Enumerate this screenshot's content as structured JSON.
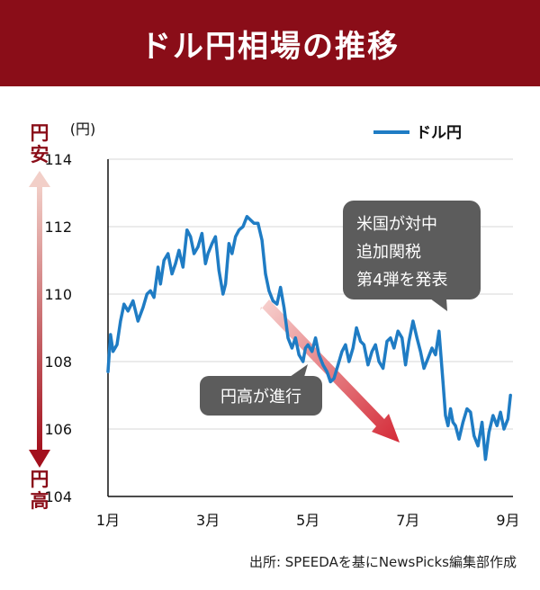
{
  "title": "ドル円相場の推移",
  "source": "出所: SPEEDAを基にNewsPicks編集部作成",
  "colors": {
    "header_bg": "#8a0d18",
    "line": "#1f7cc4",
    "callout_bg": "#5c5c5c",
    "arrow": "#d42a37",
    "axis": "#111111",
    "grid": "#d7d7d7"
  },
  "chart_data": {
    "type": "line",
    "unit_label": "(円)",
    "legend_label": "ドル円",
    "legend_position": "top-right",
    "grid": true,
    "ylim": [
      104,
      114
    ],
    "yticks": [
      104,
      106,
      108,
      110,
      112,
      114
    ],
    "xlim": [
      1,
      9.1
    ],
    "xticks": [
      {
        "value": 1,
        "label": "1月"
      },
      {
        "value": 3,
        "label": "3月"
      },
      {
        "value": 5,
        "label": "5月"
      },
      {
        "value": 7,
        "label": "7月"
      },
      {
        "value": 9,
        "label": "9月"
      }
    ],
    "side_scale": {
      "top": "円安",
      "bottom": "円高"
    },
    "series": [
      {
        "name": "ドル円",
        "x": [
          1.0,
          1.05,
          1.1,
          1.18,
          1.25,
          1.32,
          1.4,
          1.5,
          1.6,
          1.7,
          1.78,
          1.85,
          1.92,
          2.0,
          2.05,
          2.12,
          2.2,
          2.28,
          2.35,
          2.42,
          2.5,
          2.58,
          2.65,
          2.72,
          2.8,
          2.88,
          2.95,
          3.0,
          3.08,
          3.15,
          3.22,
          3.3,
          3.35,
          3.42,
          3.48,
          3.55,
          3.62,
          3.7,
          3.78,
          3.85,
          3.92,
          4.0,
          4.08,
          4.15,
          4.22,
          4.3,
          4.38,
          4.45,
          4.52,
          4.6,
          4.68,
          4.75,
          4.82,
          4.9,
          4.95,
          5.0,
          5.08,
          5.15,
          5.22,
          5.3,
          5.38,
          5.45,
          5.52,
          5.6,
          5.68,
          5.75,
          5.82,
          5.9,
          5.97,
          6.05,
          6.12,
          6.2,
          6.28,
          6.35,
          6.42,
          6.5,
          6.58,
          6.65,
          6.72,
          6.8,
          6.88,
          6.95,
          7.02,
          7.1,
          7.18,
          7.25,
          7.32,
          7.4,
          7.48,
          7.55,
          7.62,
          7.7,
          7.75,
          7.8,
          7.85,
          7.9,
          7.95,
          8.02,
          8.1,
          8.18,
          8.25,
          8.32,
          8.4,
          8.48,
          8.55,
          8.62,
          8.7,
          8.78,
          8.85,
          8.92,
          9.0,
          9.05
        ],
        "values": [
          107.7,
          108.8,
          108.3,
          108.5,
          109.2,
          109.7,
          109.5,
          109.8,
          109.2,
          109.6,
          110.0,
          110.1,
          109.9,
          110.8,
          110.3,
          111.0,
          111.2,
          110.6,
          110.9,
          111.3,
          110.8,
          111.9,
          111.7,
          111.2,
          111.4,
          111.8,
          110.9,
          111.2,
          111.5,
          111.7,
          110.7,
          110.0,
          110.3,
          111.5,
          111.2,
          111.7,
          111.9,
          112.0,
          112.3,
          112.2,
          112.1,
          112.1,
          111.6,
          110.6,
          110.1,
          109.8,
          109.7,
          110.2,
          109.6,
          108.7,
          108.4,
          108.7,
          108.2,
          108.0,
          108.4,
          108.5,
          108.3,
          108.7,
          108.2,
          107.9,
          107.7,
          107.4,
          107.5,
          107.9,
          108.3,
          108.5,
          108.0,
          108.4,
          109.0,
          108.6,
          108.5,
          107.9,
          108.3,
          108.5,
          108.0,
          107.8,
          108.6,
          108.7,
          108.4,
          108.9,
          108.7,
          107.9,
          108.6,
          109.2,
          108.7,
          108.3,
          107.8,
          108.1,
          108.4,
          108.2,
          108.9,
          107.4,
          106.4,
          106.1,
          106.6,
          106.2,
          106.1,
          105.7,
          106.2,
          106.6,
          106.5,
          105.8,
          105.5,
          106.2,
          105.1,
          105.9,
          106.4,
          106.1,
          106.5,
          106.0,
          106.3,
          107.0
        ]
      }
    ],
    "annotations": [
      {
        "text": "米国が対中 追加関税 第4弾を発表",
        "lines": [
          "米国が対中",
          "追加関税",
          "第4弾を発表"
        ],
        "x": 7.8,
        "y": 109.2
      },
      {
        "text": "円高が進行",
        "lines": [
          "円高が進行"
        ]
      }
    ]
  }
}
